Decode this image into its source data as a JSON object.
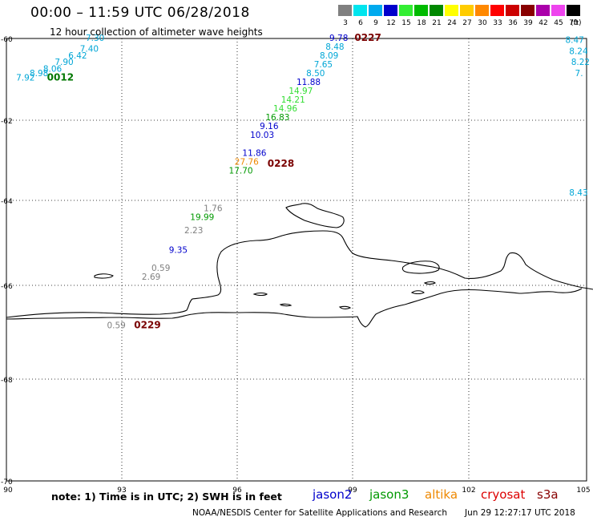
{
  "header": {
    "title": "00:00 – 11:59 UTC 06/28/2018",
    "subtitle": "12 hour collection of altimeter wave heights"
  },
  "scale": {
    "unit": "(ft)",
    "bins": [
      {
        "label": "3",
        "color": "#808080"
      },
      {
        "label": "6",
        "color": "#00e5ee"
      },
      {
        "label": "9",
        "color": "#00aaee"
      },
      {
        "label": "12",
        "color": "#0000cc"
      },
      {
        "label": "15",
        "color": "#33ee33"
      },
      {
        "label": "18",
        "color": "#00bb00"
      },
      {
        "label": "21",
        "color": "#008800"
      },
      {
        "label": "24",
        "color": "#ffff00"
      },
      {
        "label": "27",
        "color": "#ffcc00"
      },
      {
        "label": "30",
        "color": "#ff8800"
      },
      {
        "label": "33",
        "color": "#ff0000"
      },
      {
        "label": "36",
        "color": "#cc0000"
      },
      {
        "label": "39",
        "color": "#880000"
      },
      {
        "label": "42",
        "color": "#aa00aa"
      },
      {
        "label": "45",
        "color": "#ee44ee"
      },
      {
        "label": "70",
        "color": "#000000"
      }
    ]
  },
  "axes": {
    "lon_ticks": [
      "90",
      "93",
      "96",
      "99",
      "102",
      "105"
    ],
    "lat_ticks": [
      "-60",
      "-62",
      "-64",
      "-66",
      "-68",
      "-70"
    ],
    "lon_range": [
      90,
      105
    ],
    "lat_range": [
      -60,
      -70
    ]
  },
  "colors": {
    "gray": "#808080",
    "cyan": "#00a6d6",
    "blue": "#0000cc",
    "ltgreen": "#33dd33",
    "green": "#009900",
    "dkgreen": "#007700",
    "orange": "#ee8800",
    "maroon": "#7a0000"
  },
  "chart_data": {
    "type": "scatter",
    "time_labels": [
      {
        "text": "0227",
        "lon": 99.0,
        "lat": -60.05,
        "color": "maroon"
      },
      {
        "text": "0012",
        "lon": 91.05,
        "lat": -60.95,
        "color": "dkgreen"
      },
      {
        "text": "0228",
        "lon": 96.75,
        "lat": -62.9,
        "color": "maroon"
      },
      {
        "text": "0229",
        "lon": 93.3,
        "lat": -66.55,
        "color": "maroon"
      }
    ],
    "points": [
      {
        "v": "7.30",
        "lon": 92.05,
        "lat": -60.05,
        "color": "cyan"
      },
      {
        "v": "7.40",
        "lon": 91.9,
        "lat": -60.3,
        "color": "cyan"
      },
      {
        "v": "6.42",
        "lon": 91.6,
        "lat": -60.45,
        "color": "cyan"
      },
      {
        "v": "7.90",
        "lon": 91.25,
        "lat": -60.6,
        "color": "cyan"
      },
      {
        "v": "8.06",
        "lon": 90.95,
        "lat": -60.75,
        "color": "cyan"
      },
      {
        "v": "8.98",
        "lon": 90.6,
        "lat": -60.85,
        "color": "cyan"
      },
      {
        "v": "7.92",
        "lon": 90.25,
        "lat": -60.95,
        "color": "cyan"
      },
      {
        "v": "9.78",
        "lon": 98.35,
        "lat": -60.05,
        "color": "blue"
      },
      {
        "v": "8.48",
        "lon": 98.25,
        "lat": -60.25,
        "color": "cyan"
      },
      {
        "v": "8.09",
        "lon": 98.1,
        "lat": -60.45,
        "color": "cyan"
      },
      {
        "v": "7.65",
        "lon": 97.95,
        "lat": -60.65,
        "color": "cyan"
      },
      {
        "v": "8.50",
        "lon": 97.75,
        "lat": -60.85,
        "color": "cyan"
      },
      {
        "v": "11.88",
        "lon": 97.5,
        "lat": -61.05,
        "color": "blue"
      },
      {
        "v": "14.97",
        "lon": 97.3,
        "lat": -61.25,
        "color": "ltgreen"
      },
      {
        "v": "14.21",
        "lon": 97.1,
        "lat": -61.45,
        "color": "ltgreen"
      },
      {
        "v": "14.96",
        "lon": 96.9,
        "lat": -61.65,
        "color": "ltgreen"
      },
      {
        "v": "16.83",
        "lon": 96.7,
        "lat": -61.85,
        "color": "green"
      },
      {
        "v": "9.16",
        "lon": 96.55,
        "lat": -62.05,
        "color": "blue"
      },
      {
        "v": "10.03",
        "lon": 96.3,
        "lat": -62.25,
        "color": "blue"
      },
      {
        "v": "11.86",
        "lon": 96.1,
        "lat": -62.65,
        "color": "blue"
      },
      {
        "v": "27.76",
        "lon": 95.9,
        "lat": -62.85,
        "color": "orange"
      },
      {
        "v": "17.70",
        "lon": 95.75,
        "lat": -63.05,
        "color": "green"
      },
      {
        "v": "1.76",
        "lon": 95.1,
        "lat": -63.9,
        "color": "gray"
      },
      {
        "v": "19.99",
        "lon": 94.75,
        "lat": -64.1,
        "color": "green"
      },
      {
        "v": "2.23",
        "lon": 94.6,
        "lat": -64.4,
        "color": "gray"
      },
      {
        "v": "9.35",
        "lon": 94.2,
        "lat": -64.85,
        "color": "blue"
      },
      {
        "v": "0.59",
        "lon": 93.75,
        "lat": -65.25,
        "color": "gray"
      },
      {
        "v": "2.69",
        "lon": 93.5,
        "lat": -65.45,
        "color": "gray"
      },
      {
        "v": "0.59",
        "lon": 92.6,
        "lat": -66.55,
        "color": "gray"
      },
      {
        "v": "8.47",
        "lon": 104.45,
        "lat": -60.1,
        "color": "cyan"
      },
      {
        "v": "8.24",
        "lon": 104.55,
        "lat": -60.35,
        "color": "cyan"
      },
      {
        "v": "8.22",
        "lon": 104.6,
        "lat": -60.6,
        "color": "cyan"
      },
      {
        "v": "7.",
        "lon": 104.7,
        "lat": -60.85,
        "color": "cyan"
      },
      {
        "v": "8.43",
        "lon": 104.55,
        "lat": -63.55,
        "color": "cyan"
      }
    ]
  },
  "footer": {
    "note": "note: 1) Time is in UTC; 2) SWH is in feet",
    "satellites": [
      {
        "name": "jason2",
        "color": "#0000cc"
      },
      {
        "name": "jason3",
        "color": "#009900"
      },
      {
        "name": "altika",
        "color": "#ee8800"
      },
      {
        "name": "cryosat",
        "color": "#dd0000"
      },
      {
        "name": "s3a",
        "color": "#880000"
      }
    ],
    "credit": "NOAA/NESDIS Center for Satellite Applications and Research",
    "timestamp": "Jun 29 12:27:17 UTC 2018"
  }
}
